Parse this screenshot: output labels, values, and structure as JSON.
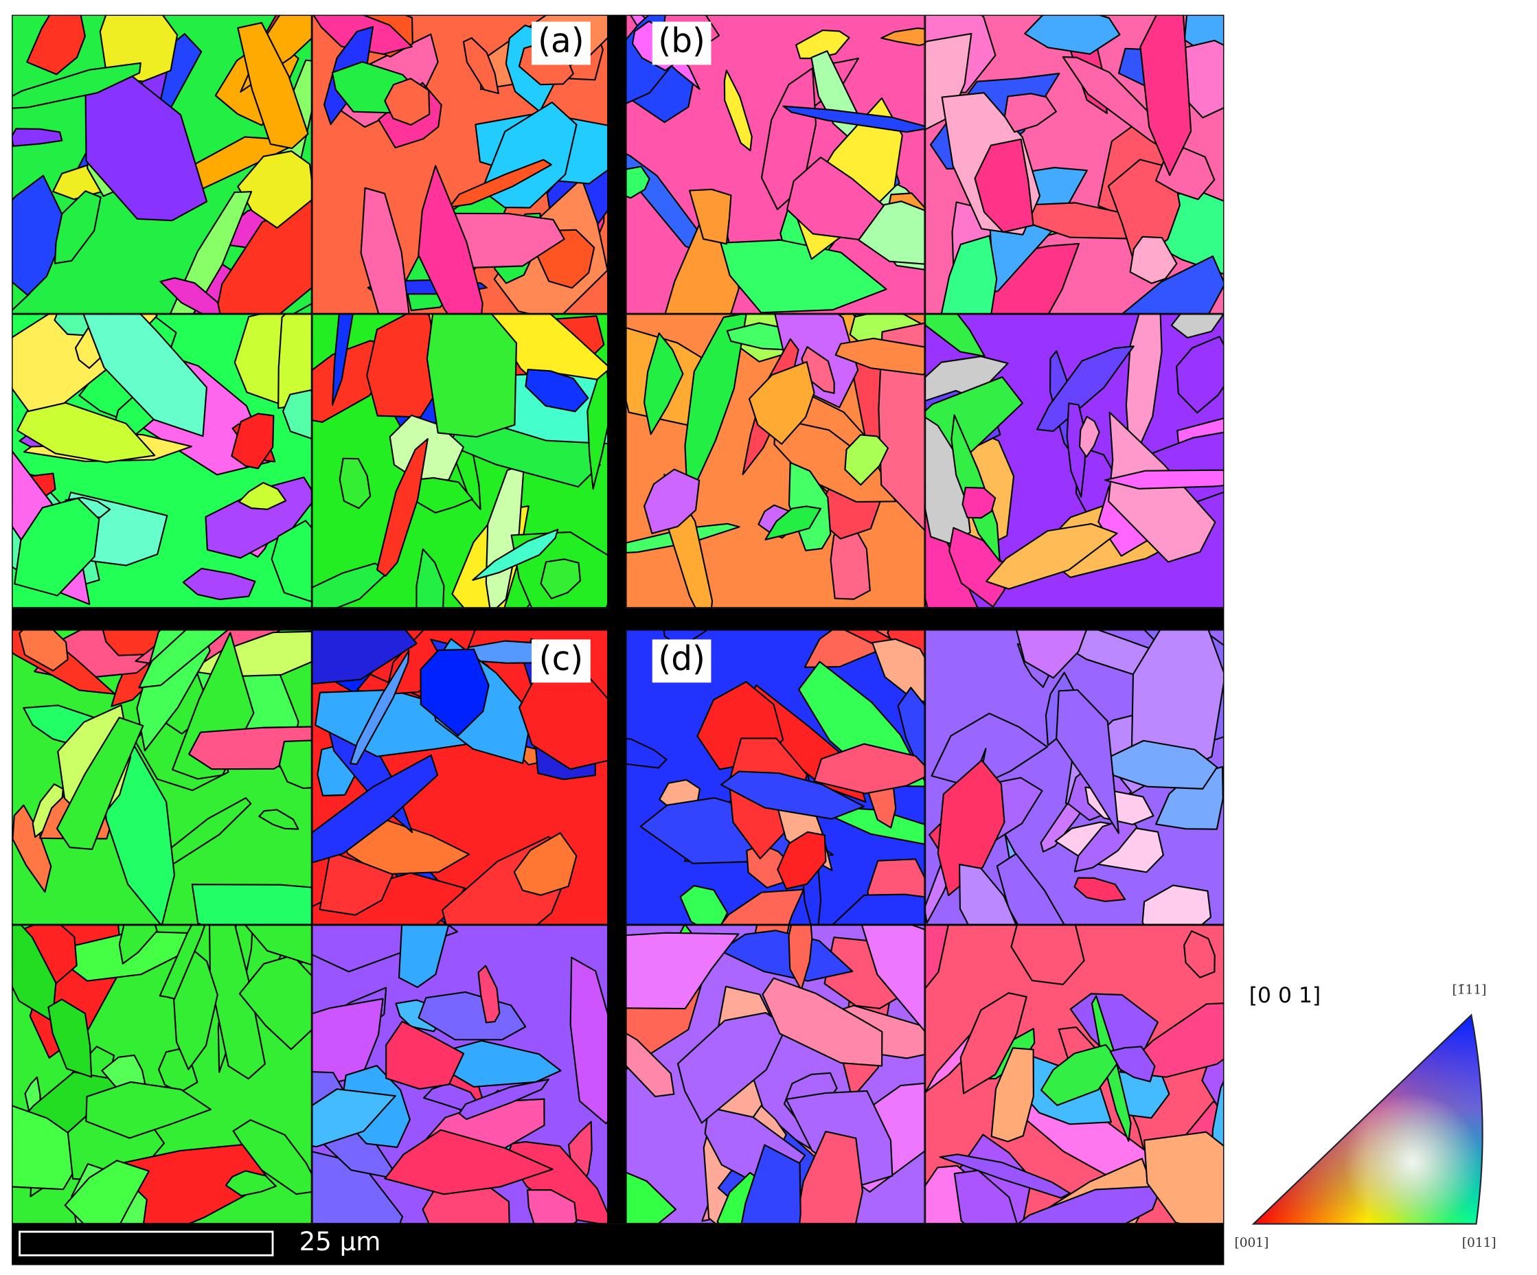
{
  "panels": [
    {
      "label": "(a)"
    },
    {
      "label": "(b)"
    },
    {
      "label": "(c)"
    },
    {
      "label": "(d)"
    }
  ],
  "scale_bar": {
    "label": "25 μm"
  },
  "legend": {
    "title": "[0 0 1]",
    "corners": [
      "[001]",
      "[1̄11]",
      "[011]"
    ]
  }
}
